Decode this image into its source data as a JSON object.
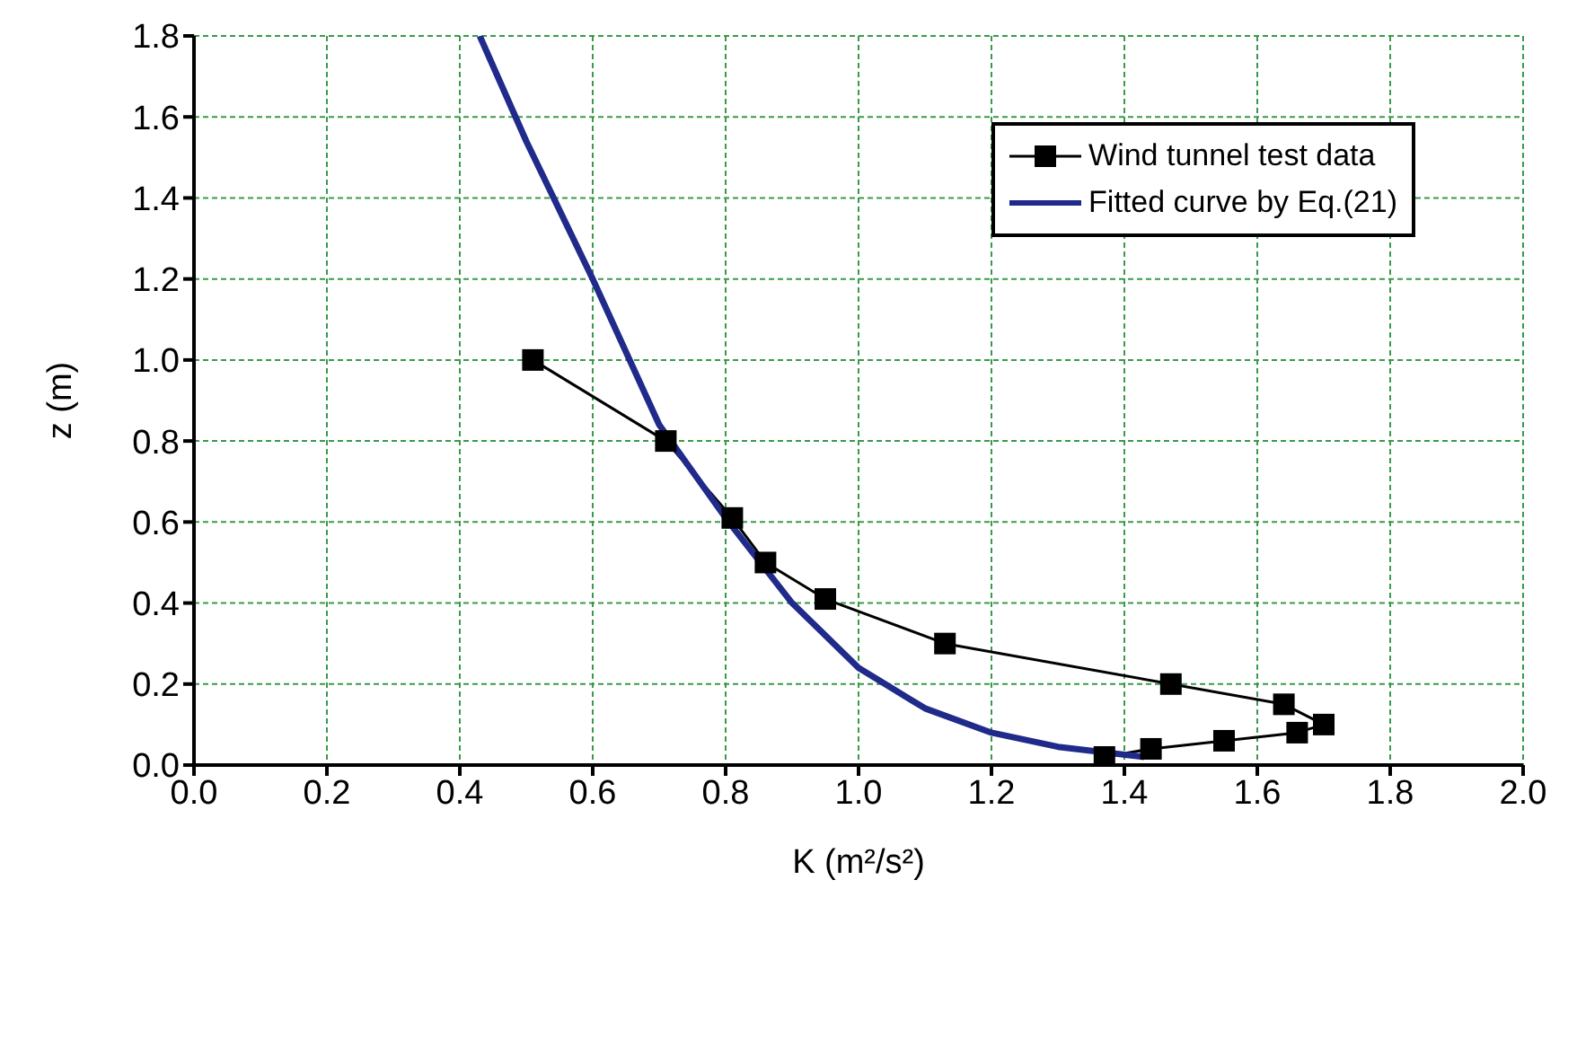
{
  "chart_data": {
    "type": "line",
    "xlabel": "K (m²/s²)",
    "ylabel": "z (m)",
    "xlim": [
      0,
      2
    ],
    "xticks": [
      {
        "value": 0,
        "label": "0.0"
      },
      0.2,
      0.4,
      0.6,
      0.8,
      {
        "value": 1,
        "label": "1.0"
      },
      1.2,
      1.4,
      1.6,
      1.8,
      {
        "value": 2,
        "label": "2.0"
      }
    ],
    "ylim": [
      0,
      1.8
    ],
    "yticks": [
      {
        "value": 0,
        "label": "0.0"
      },
      0.2,
      0.4,
      0.6,
      0.8,
      {
        "value": 1,
        "label": "1.0"
      },
      1.2,
      1.4,
      1.6,
      1.8
    ],
    "grid": true,
    "legend": "top right",
    "series": [
      {
        "name": "Wind tunnel test data",
        "color": "#000000",
        "marker": "square",
        "x": [
          0.51,
          0.71,
          0.81,
          0.86,
          0.95,
          1.13,
          1.47,
          1.64,
          1.7,
          1.66,
          1.55,
          1.44,
          1.37
        ],
        "values": [
          1.0,
          0.8,
          0.61,
          0.5,
          0.41,
          0.3,
          0.2,
          0.15,
          0.1,
          0.08,
          0.06,
          0.04,
          0.02
        ]
      },
      {
        "name": "Fitted curve by Eq.(21)",
        "color": "#1f2a8a",
        "marker": "none",
        "x": [
          0.43,
          0.5,
          0.6,
          0.7,
          0.8,
          0.9,
          1.0,
          1.1,
          1.2,
          1.3,
          1.43
        ],
        "values": [
          1.8,
          1.54,
          1.2,
          0.84,
          0.61,
          0.4,
          0.24,
          0.14,
          0.08,
          0.045,
          0.02
        ]
      }
    ]
  }
}
